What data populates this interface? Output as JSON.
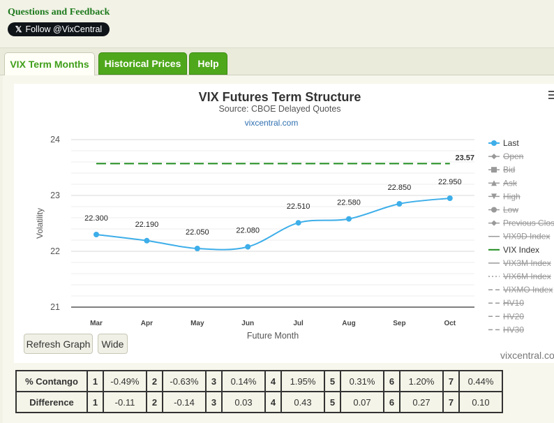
{
  "header": {
    "questions_link": "Questions and Feedback",
    "follow_label": "Follow @VixCentral",
    "x_logo": "𝕏"
  },
  "tabs": [
    {
      "label": "VIX Term Months",
      "active": true
    },
    {
      "label": "Historical Prices",
      "active": false
    },
    {
      "label": "Help",
      "active": false
    }
  ],
  "chart_data": {
    "type": "line",
    "title": "VIX Futures Term Structure",
    "subtitle": "Source: CBOE Delayed Quotes",
    "source_link": "vixcentral.com",
    "xlabel": "Future Month",
    "ylabel": "Volatility",
    "ylim": [
      21,
      24
    ],
    "yticks": [
      21,
      22,
      23,
      24
    ],
    "categories": [
      "Mar",
      "Apr",
      "May",
      "Jun",
      "Jul",
      "Aug",
      "Sep",
      "Oct"
    ],
    "series": [
      {
        "name": "Last",
        "values": [
          22.3,
          22.19,
          22.05,
          22.08,
          22.51,
          22.58,
          22.85,
          22.95
        ],
        "labels": [
          "22.300",
          "22.190",
          "22.050",
          "22.080",
          "22.510",
          "22.580",
          "22.850",
          "22.950"
        ],
        "color": "#3daee9"
      }
    ],
    "reference_line": {
      "name": "VIX Index",
      "value": 23.57,
      "label": "23.57",
      "color": "#1e8c1e"
    },
    "grid": true,
    "legend_position": "right",
    "legend": [
      {
        "label": "Last",
        "symbol": "circle-line",
        "enabled": true,
        "color": "#3daee9"
      },
      {
        "label": "Open",
        "symbol": "diamond-line",
        "enabled": false
      },
      {
        "label": "Bid",
        "symbol": "square-line",
        "enabled": false
      },
      {
        "label": "Ask",
        "symbol": "triangle-line",
        "enabled": false
      },
      {
        "label": "High",
        "symbol": "triangle-down-line",
        "enabled": false
      },
      {
        "label": "Low",
        "symbol": "circle-line",
        "enabled": false
      },
      {
        "label": "Previous Clos",
        "symbol": "diamond-line",
        "enabled": false
      },
      {
        "label": "VIX9D Index",
        "symbol": "line",
        "enabled": false
      },
      {
        "label": "VIX Index",
        "symbol": "line",
        "enabled": true,
        "color": "#1e8c1e"
      },
      {
        "label": "VIX3M Index",
        "symbol": "line",
        "enabled": false
      },
      {
        "label": "VIX6M Index",
        "symbol": "dotted-line",
        "enabled": false
      },
      {
        "label": "VIXMO Index",
        "symbol": "dash-line",
        "enabled": false
      },
      {
        "label": "HV10",
        "symbol": "dash-line",
        "enabled": false
      },
      {
        "label": "HV20",
        "symbol": "dash-line",
        "enabled": false
      },
      {
        "label": "HV30",
        "symbol": "dash-line",
        "enabled": false
      }
    ],
    "watermark": "vixcentral.com"
  },
  "buttons": {
    "refresh": "Refresh Graph",
    "wide": "Wide"
  },
  "stats": {
    "contango": {
      "label": "% Contango",
      "cells": [
        [
          "1",
          "-0.49%"
        ],
        [
          "2",
          "-0.63%"
        ],
        [
          "3",
          "0.14%"
        ],
        [
          "4",
          "1.95%"
        ],
        [
          "5",
          "0.31%"
        ],
        [
          "6",
          "1.20%"
        ],
        [
          "7",
          "0.44%"
        ]
      ]
    },
    "difference": {
      "label": "Difference",
      "cells": [
        [
          "1",
          "-0.11"
        ],
        [
          "2",
          "-0.14"
        ],
        [
          "3",
          "0.03"
        ],
        [
          "4",
          "0.43"
        ],
        [
          "5",
          "0.07"
        ],
        [
          "6",
          "0.27"
        ],
        [
          "7",
          "0.10"
        ]
      ]
    }
  },
  "colors": {
    "accent_green": "#4fa81b",
    "series_blue": "#3daee9",
    "vix_green": "#1e8c1e"
  }
}
